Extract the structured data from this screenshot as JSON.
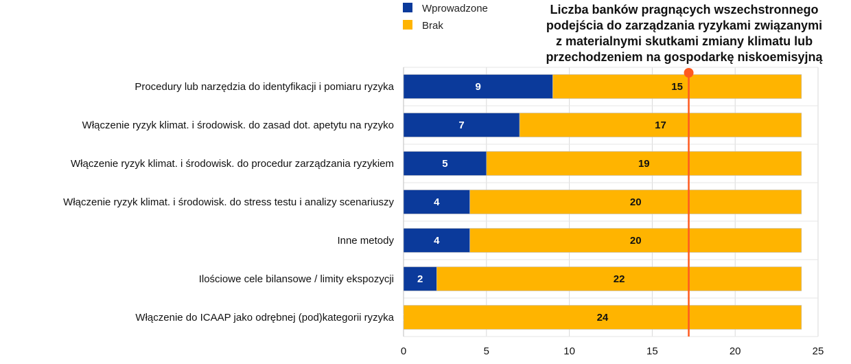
{
  "chart_data": {
    "type": "bar",
    "orientation": "horizontal",
    "stacked": true,
    "categories": [
      "Procedury lub narzędzia do identyfikacji i pomiaru ryzyka",
      "Włączenie ryzyk klimat. i środowisk. do zasad dot. apetytu na ryzyko",
      "Włączenie ryzyk klimat. i środowisk. do procedur zarządzania ryzykiem",
      "Włączenie ryzyk klimat. i środowisk. do stress testu i analizy scenariuszy",
      "Inne metody",
      "Ilościowe cele bilansowe / limity ekspozycji",
      "Włączenie do ICAAP jako odrębnej (pod)kategorii ryzyka"
    ],
    "series": [
      {
        "name": "Wprowadzone",
        "color": "#0b3a9b",
        "label_color": "#ffffff",
        "values": [
          9,
          7,
          5,
          4,
          4,
          2,
          0
        ]
      },
      {
        "name": "Brak",
        "color": "#ffb400",
        "label_color": "#111111",
        "values": [
          15,
          17,
          19,
          20,
          20,
          22,
          24
        ]
      }
    ],
    "xlim": [
      0,
      25
    ],
    "xticks": [
      0,
      5,
      10,
      15,
      20,
      25
    ],
    "grid": "vertical",
    "legend": "top",
    "reference_line": {
      "value": 17.2,
      "color": "#ff5a1f",
      "label_lines": [
        "Liczba banków pragnących wszechstronnego",
        "podejścia do zarządzania ryzykami związanymi",
        "z materialnymi skutkami zmiany klimatu lub",
        "przechodzeniem na gospodarkę niskoemisyjną"
      ]
    }
  }
}
